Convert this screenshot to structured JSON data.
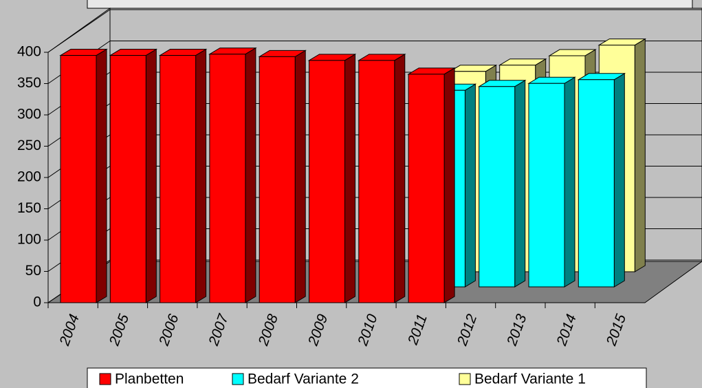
{
  "chart_data": {
    "type": "bar3d",
    "categories": [
      "2004",
      "2005",
      "2006",
      "2007",
      "2008",
      "2009",
      "2010",
      "2011",
      "2012",
      "2013",
      "2014",
      "2015"
    ],
    "series": [
      {
        "name": "Planbetten",
        "color": "#ff0000",
        "values": [
          395,
          395,
          395,
          397,
          393,
          387,
          387,
          365,
          null,
          null,
          null,
          null
        ]
      },
      {
        "name": "Bedarf Variante 2",
        "color": "#00ffff",
        "values": [
          null,
          null,
          null,
          null,
          null,
          null,
          null,
          null,
          314,
          320,
          325,
          331
        ]
      },
      {
        "name": "Bedarf Variante 1",
        "color": "#ffff99",
        "values": [
          null,
          null,
          null,
          null,
          null,
          null,
          null,
          null,
          320,
          330,
          345,
          362
        ]
      }
    ],
    "ylim": [
      0,
      400
    ],
    "yticks": [
      0,
      50,
      100,
      150,
      200,
      250,
      300,
      350,
      400
    ],
    "grid": true,
    "legend": "bottom"
  }
}
